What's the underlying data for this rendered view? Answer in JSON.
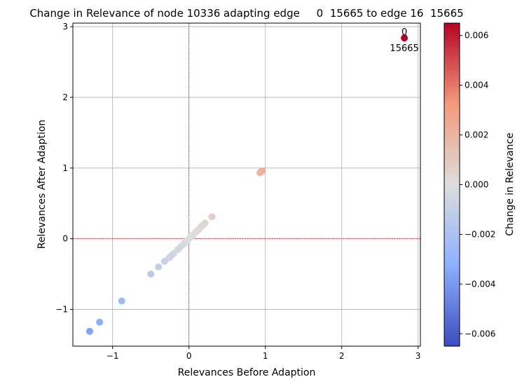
{
  "chart_data": {
    "type": "scatter",
    "title": "Change in Relevance of node 10336 adapting edge     0  15665 to edge 16  15665",
    "xlabel": "Relevances Before Adaption",
    "ylabel": "Relevances After Adaption",
    "xlim": [
      -1.52,
      3.03
    ],
    "ylim": [
      -1.52,
      3.05
    ],
    "xticks": [
      -1,
      0,
      1,
      2,
      3
    ],
    "xtick_labels": [
      "−1",
      "0",
      "1",
      "2",
      "3"
    ],
    "yticks": [
      -1,
      0,
      1,
      2,
      3
    ],
    "ytick_labels": [
      "−1",
      "0",
      "1",
      "2",
      "3"
    ],
    "grid": true,
    "reference_lines": {
      "x": 0,
      "y": 0,
      "color": "#d62728",
      "style": "dashed"
    },
    "colorbar": {
      "label": "Change in Relevance",
      "colormap": "coolwarm",
      "range": [
        -0.0065,
        0.0065
      ],
      "ticks": [
        -0.006,
        -0.004,
        -0.002,
        0.0,
        0.002,
        0.004,
        0.006
      ],
      "tick_labels": [
        "−0.006",
        "−0.004",
        "−0.002",
        "0.000",
        "0.002",
        "0.004",
        "0.006"
      ]
    },
    "annotation": {
      "x": 2.82,
      "y": 2.84,
      "lines": [
        "0",
        "15665"
      ]
    },
    "points": [
      {
        "x": 2.82,
        "y": 2.84,
        "c": 0.0065
      },
      {
        "x": 0.96,
        "y": 0.96,
        "c": 0.0022
      },
      {
        "x": 0.94,
        "y": 0.945,
        "c": 0.0022
      },
      {
        "x": 0.93,
        "y": 0.935,
        "c": 0.0021
      },
      {
        "x": 0.3,
        "y": 0.31,
        "c": 0.0007
      },
      {
        "x": 0.21,
        "y": 0.22,
        "c": 0.0004
      },
      {
        "x": 0.19,
        "y": 0.2,
        "c": 0.0004
      },
      {
        "x": 0.17,
        "y": 0.18,
        "c": 0.0003
      },
      {
        "x": 0.15,
        "y": 0.16,
        "c": 0.0003
      },
      {
        "x": 0.13,
        "y": 0.135,
        "c": 0.0003
      },
      {
        "x": 0.11,
        "y": 0.115,
        "c": 0.0002
      },
      {
        "x": 0.09,
        "y": 0.095,
        "c": 0.0002
      },
      {
        "x": 0.07,
        "y": 0.075,
        "c": 0.0001
      },
      {
        "x": 0.05,
        "y": 0.055,
        "c": 0.0001
      },
      {
        "x": 0.03,
        "y": 0.033,
        "c": 0.0001
      },
      {
        "x": 0.01,
        "y": 0.012,
        "c": 0.0
      },
      {
        "x": -0.01,
        "y": -0.012,
        "c": 0.0
      },
      {
        "x": -0.03,
        "y": -0.033,
        "c": -0.0001
      },
      {
        "x": -0.05,
        "y": -0.055,
        "c": -0.0001
      },
      {
        "x": -0.07,
        "y": -0.075,
        "c": -0.0002
      },
      {
        "x": -0.09,
        "y": -0.095,
        "c": -0.0002
      },
      {
        "x": -0.12,
        "y": -0.125,
        "c": -0.0003
      },
      {
        "x": -0.15,
        "y": -0.155,
        "c": -0.0004
      },
      {
        "x": -0.2,
        "y": -0.21,
        "c": -0.0005
      },
      {
        "x": -0.23,
        "y": -0.24,
        "c": -0.0006
      },
      {
        "x": -0.26,
        "y": -0.27,
        "c": -0.0007
      },
      {
        "x": -0.32,
        "y": -0.32,
        "c": -0.0009
      },
      {
        "x": -0.4,
        "y": -0.4,
        "c": -0.0011
      },
      {
        "x": -0.5,
        "y": -0.5,
        "c": -0.0014
      },
      {
        "x": -0.88,
        "y": -0.88,
        "c": -0.0025
      },
      {
        "x": -1.17,
        "y": -1.18,
        "c": -0.0033
      },
      {
        "x": -1.3,
        "y": -1.31,
        "c": -0.0037
      }
    ]
  }
}
